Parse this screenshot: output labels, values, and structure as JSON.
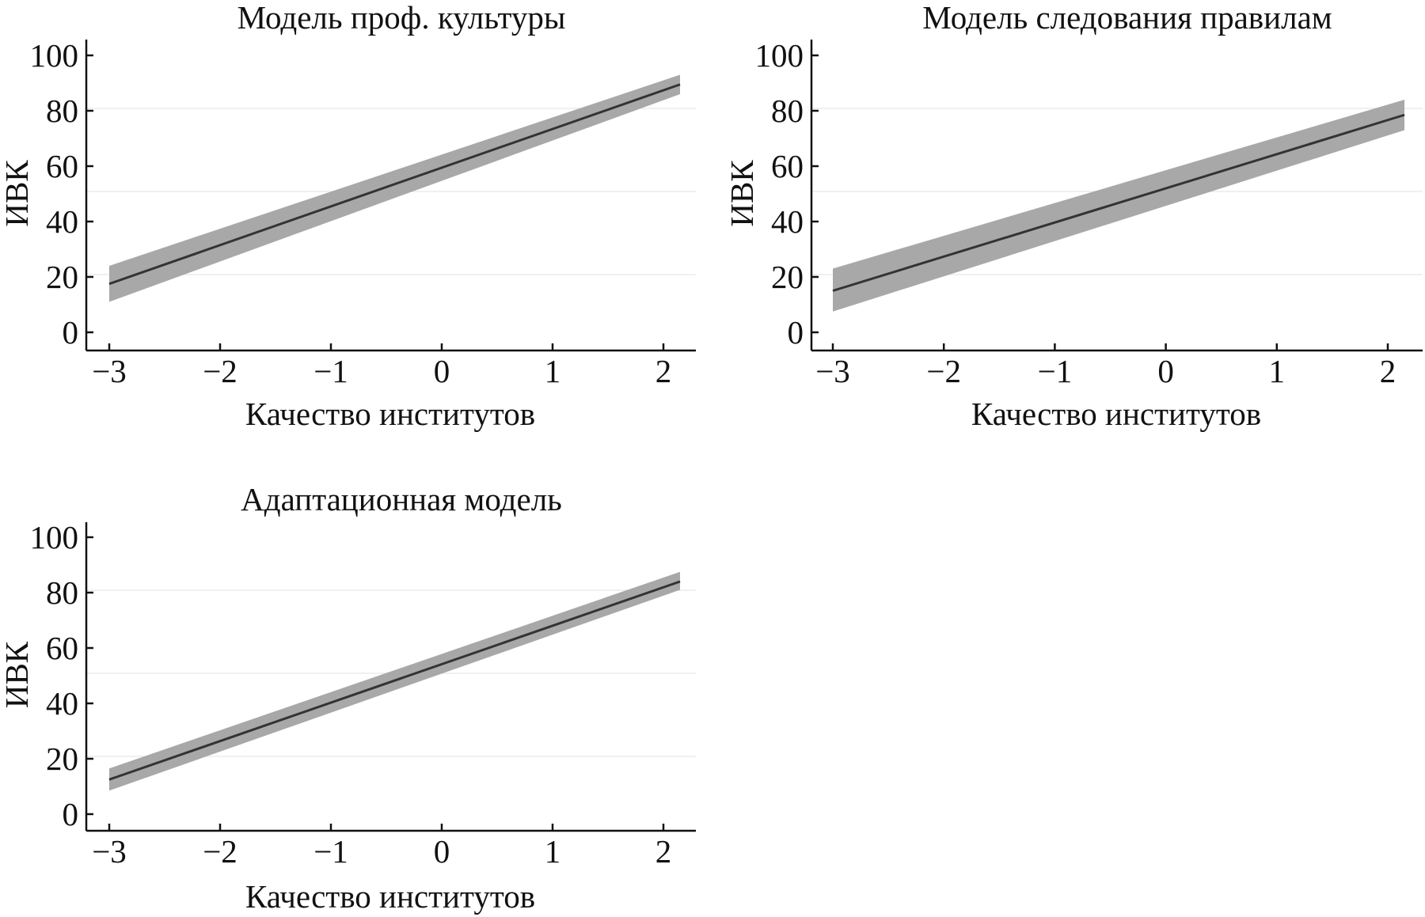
{
  "chart_data": [
    {
      "type": "line",
      "title": "Модель проф. культуры",
      "xlabel": "Качество институтов",
      "ylabel": "ИВК",
      "xlim": [
        -3.2,
        2.3
      ],
      "ylim": [
        -6,
        104
      ],
      "xticks": [
        -3,
        -2,
        -1,
        0,
        1,
        2
      ],
      "xtick_labels": [
        "−3",
        "−2",
        "−1",
        "0",
        "1",
        "2"
      ],
      "yticks": [
        0,
        20,
        40,
        60,
        80,
        100
      ],
      "ytick_labels": [
        "0",
        "20",
        "40",
        "60",
        "80",
        "100"
      ],
      "grid": false,
      "series": [
        {
          "x": [
            -3.0,
            2.15
          ],
          "y": [
            17.5,
            89.5
          ],
          "ci_lower": [
            11.0,
            86.0
          ],
          "ci_upper": [
            24.0,
            93.0
          ],
          "color": "#333333",
          "band_color": "#a8a8a8"
        }
      ]
    },
    {
      "type": "line",
      "title": "Модель следования правилам",
      "xlabel": "Качество институтов",
      "ylabel": "ИВК",
      "xlim": [
        -3.2,
        2.3
      ],
      "ylim": [
        -6,
        104
      ],
      "xticks": [
        -3,
        -2,
        -1,
        0,
        1,
        2
      ],
      "xtick_labels": [
        "−3",
        "−2",
        "−1",
        "0",
        "1",
        "2"
      ],
      "yticks": [
        0,
        20,
        40,
        60,
        80,
        100
      ],
      "ytick_labels": [
        "0",
        "20",
        "40",
        "60",
        "80",
        "100"
      ],
      "grid": false,
      "series": [
        {
          "x": [
            -3.0,
            2.15
          ],
          "y": [
            15.0,
            78.5
          ],
          "ci_lower": [
            7.5,
            73.0
          ],
          "ci_upper": [
            23.0,
            84.0
          ],
          "color": "#333333",
          "band_color": "#a8a8a8"
        }
      ]
    },
    {
      "type": "line",
      "title": "Адаптационная модель",
      "xlabel": "Качество институтов",
      "ylabel": "ИВК",
      "xlim": [
        -3.2,
        2.3
      ],
      "ylim": [
        -6,
        104
      ],
      "xticks": [
        -3,
        -2,
        -1,
        0,
        1,
        2
      ],
      "xtick_labels": [
        "−3",
        "−2",
        "−1",
        "0",
        "1",
        "2"
      ],
      "yticks": [
        0,
        20,
        40,
        60,
        80,
        100
      ],
      "ytick_labels": [
        "0",
        "20",
        "40",
        "60",
        "80",
        "100"
      ],
      "grid": false,
      "series": [
        {
          "x": [
            -3.0,
            2.15
          ],
          "y": [
            12.5,
            84.0
          ],
          "ci_lower": [
            8.5,
            81.0
          ],
          "ci_upper": [
            16.5,
            87.5
          ],
          "color": "#333333",
          "band_color": "#a8a8a8"
        }
      ]
    }
  ]
}
